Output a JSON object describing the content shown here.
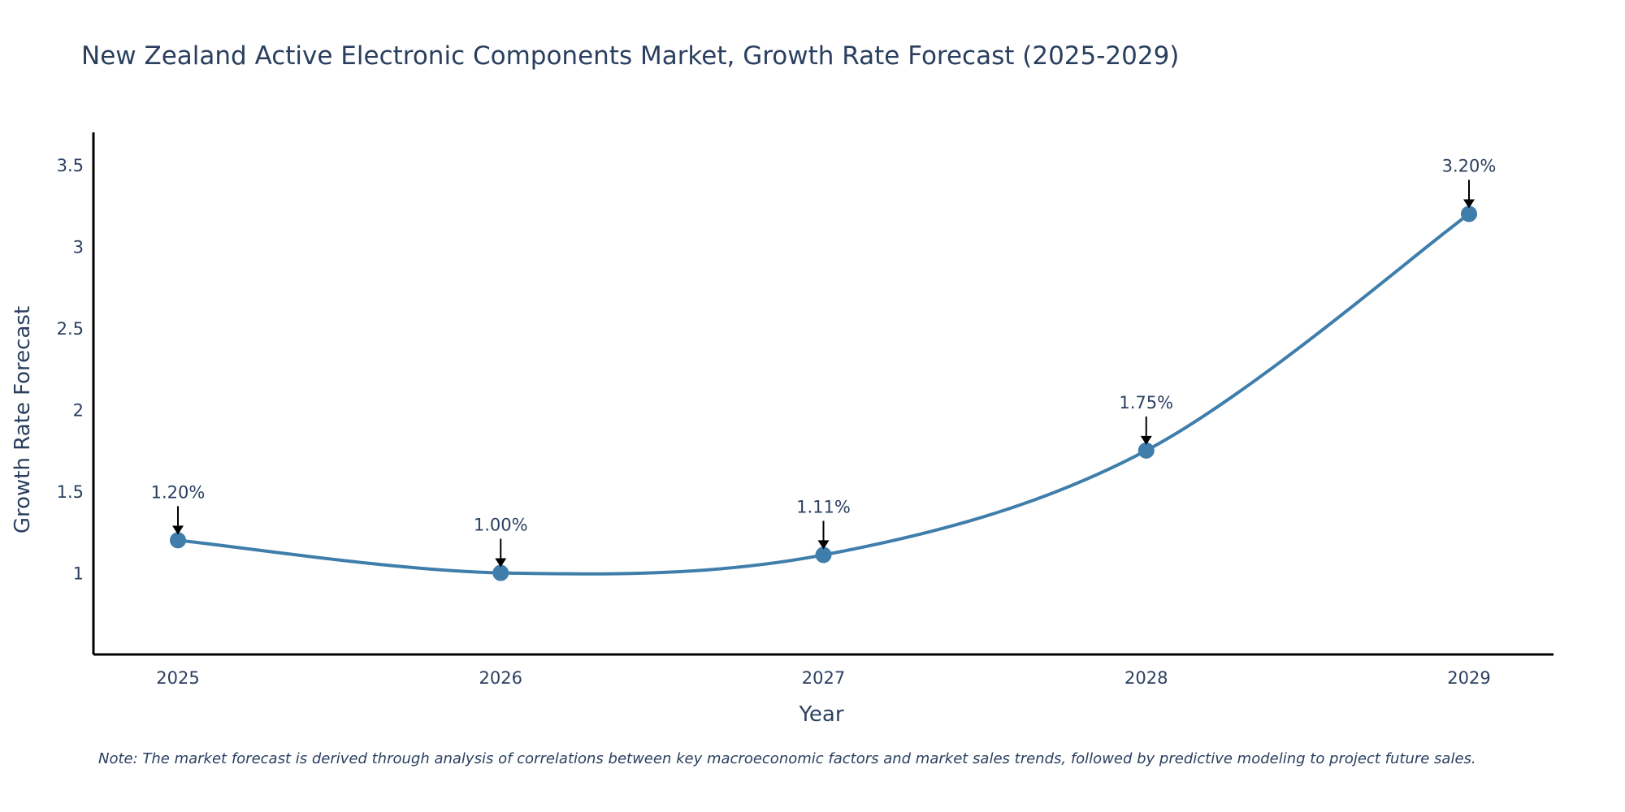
{
  "chart_data": {
    "type": "line",
    "title": "New Zealand Active Electronic Components Market, Growth Rate Forecast (2025-2029)",
    "xlabel": "Year",
    "ylabel": "Growth Rate Forecast",
    "x": [
      "2025",
      "2026",
      "2027",
      "2028",
      "2029"
    ],
    "values": [
      1.2,
      1.0,
      1.11,
      1.75,
      3.2
    ],
    "data_labels": [
      "1.20%",
      "1.00%",
      "1.11%",
      "1.75%",
      "3.20%"
    ],
    "ylim": [
      0.5,
      3.7
    ],
    "yticks": [
      1,
      1.5,
      2,
      2.5,
      3,
      3.5
    ],
    "ytick_labels": [
      "1",
      "1.5",
      "2",
      "2.5",
      "3",
      "3.5"
    ],
    "line_shape": "spline",
    "grid": false,
    "note": "Note: The market forecast is derived through analysis of correlations between key macroeconomic factors and market sales trends, followed by predictive modeling to project future sales.",
    "colors": {
      "line": "#3f7eab",
      "marker": "#3f7eab",
      "axis": "#000000",
      "text": "#2a3f5f",
      "arrow": "#000000"
    }
  }
}
